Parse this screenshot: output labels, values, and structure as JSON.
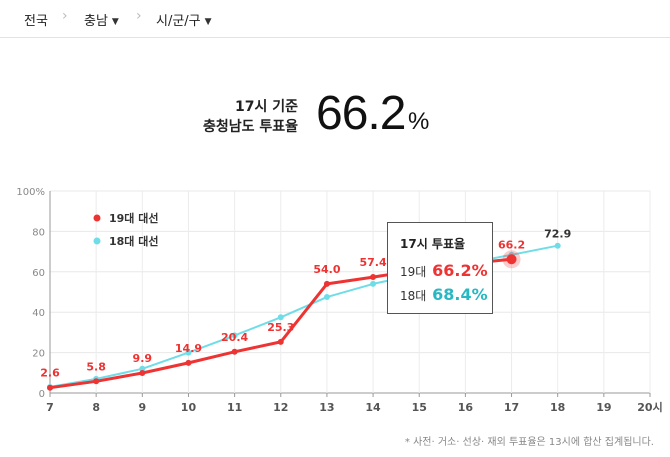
{
  "breadcrumb": {
    "home": "전국",
    "province": "충남",
    "district": "시/군/구"
  },
  "headline": {
    "line1": "17시 기준",
    "line2": "충청남도 투표율",
    "value": "66.2",
    "unit": "%"
  },
  "tooltip": {
    "title": "17시 투표율",
    "row1_label": "19대",
    "row1_value": "66.2%",
    "row2_label": "18대",
    "row2_value": "68.4%"
  },
  "footnote": "* 사전‧ 거소‧ 선상‧ 재외 투표율은 13시에 합산 집계됩니다.",
  "colors": {
    "series19": "#ee3333",
    "series18": "#6fdde8",
    "tooltip18": "#27b8c4"
  },
  "chart_data": {
    "type": "line",
    "x": [
      7,
      8,
      9,
      10,
      11,
      12,
      13,
      14,
      15,
      16,
      17,
      18,
      19,
      20
    ],
    "x_tick_labels": [
      "7",
      "8",
      "9",
      "10",
      "11",
      "12",
      "13",
      "14",
      "15",
      "16",
      "17",
      "18",
      "19",
      "20시"
    ],
    "y_tick_labels": [
      "0",
      "20",
      "40",
      "60",
      "80",
      "100%"
    ],
    "ylim": [
      0,
      100
    ],
    "xlim": [
      7,
      20
    ],
    "grid": true,
    "legend_position": "top-left",
    "series": [
      {
        "name": "19대 대선",
        "x": [
          7,
          8,
          9,
          10,
          11,
          12,
          13,
          14,
          15,
          16,
          17
        ],
        "values": [
          2.6,
          5.8,
          9.9,
          14.9,
          20.4,
          25.3,
          54.0,
          57.4,
          61.0,
          64.0,
          66.2
        ],
        "labels": [
          "2.6",
          "5.8",
          "9.9",
          "14.9",
          "20.4",
          "25.3",
          "54.0",
          "57.4",
          null,
          null,
          "66.2"
        ]
      },
      {
        "name": "18대 대선",
        "x": [
          7,
          8,
          9,
          10,
          11,
          12,
          13,
          14,
          15,
          16,
          17,
          18
        ],
        "values": [
          3.0,
          7.0,
          12.0,
          20.0,
          28.5,
          37.5,
          47.5,
          54.0,
          59.0,
          64.0,
          68.4,
          72.9
        ],
        "labels": [
          null,
          null,
          null,
          null,
          null,
          null,
          null,
          null,
          null,
          null,
          null,
          "72.9"
        ]
      }
    ]
  }
}
